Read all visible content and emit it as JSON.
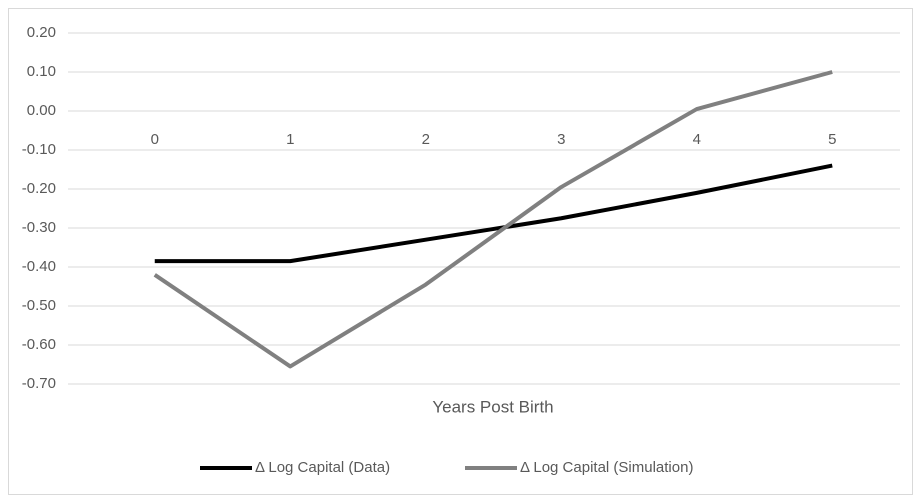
{
  "chart_data": {
    "type": "line",
    "x_label": "Years Post Birth",
    "categories": [
      "0",
      "1",
      "2",
      "3",
      "4",
      "5"
    ],
    "series": [
      {
        "name": "Δ Log Capital (Data)",
        "color": "#000000",
        "values": [
          -0.385,
          -0.385,
          -0.33,
          -0.275,
          -0.21,
          -0.14
        ]
      },
      {
        "name": "Δ Log Capital (Simulation)",
        "color": "#808080",
        "values": [
          -0.42,
          -0.655,
          -0.445,
          -0.195,
          0.005,
          0.1
        ]
      }
    ],
    "ylim": [
      -0.7,
      0.2
    ],
    "yticks": [
      {
        "value": 0.2,
        "label": "0.20"
      },
      {
        "value": 0.1,
        "label": "0.10"
      },
      {
        "value": 0,
        "label": "0.00"
      },
      {
        "value": -0.1,
        "label": "-0.10"
      },
      {
        "value": -0.2,
        "label": "-0.20"
      },
      {
        "value": -0.3,
        "label": "-0.30"
      },
      {
        "value": -0.4,
        "label": "-0.40"
      },
      {
        "value": -0.5,
        "label": "-0.50"
      },
      {
        "value": -0.6,
        "label": "-0.60"
      },
      {
        "value": -0.7,
        "label": "-0.70"
      }
    ],
    "grid": true,
    "legend": "bottom"
  }
}
